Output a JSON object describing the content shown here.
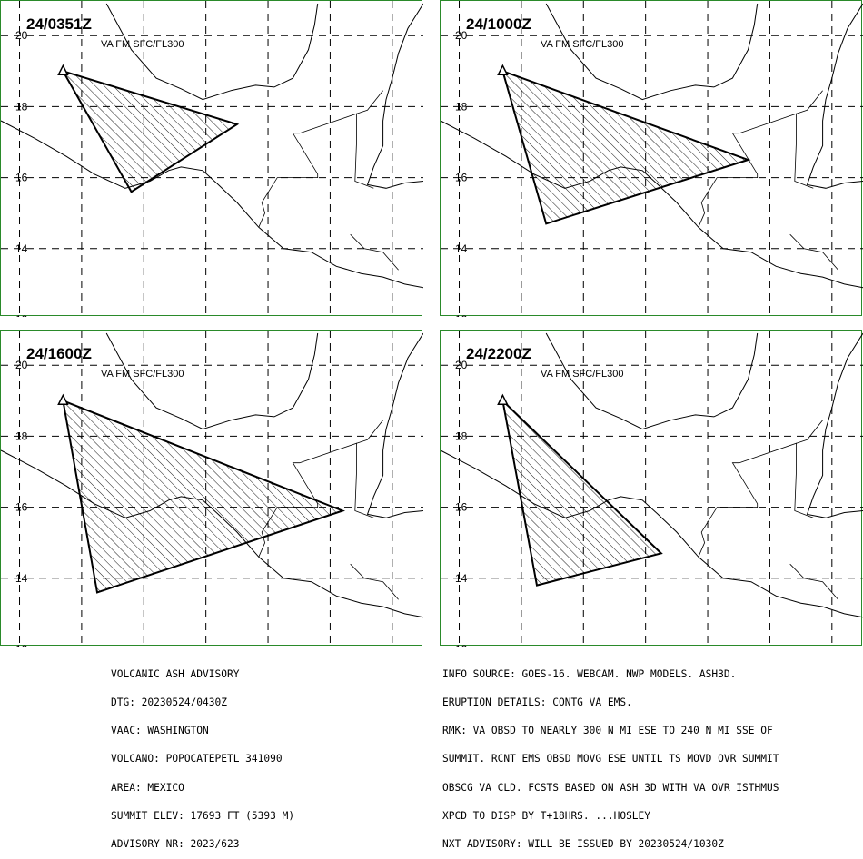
{
  "panels": [
    {
      "time": "24/0351Z",
      "level": "VA FM SFC/FL300",
      "polygon": [
        [
          -98.6,
          19.0
        ],
        [
          -93.0,
          17.5
        ],
        [
          -96.4,
          15.6
        ]
      ]
    },
    {
      "time": "24/1000Z",
      "level": "VA FM SFC/FL300",
      "polygon": [
        [
          -98.6,
          19.0
        ],
        [
          -90.7,
          16.5
        ],
        [
          -97.2,
          14.7
        ]
      ]
    },
    {
      "time": "24/1600Z",
      "level": "VA FM SFC/FL300",
      "polygon": [
        [
          -98.6,
          19.0
        ],
        [
          -89.6,
          15.9
        ],
        [
          -97.5,
          13.6
        ]
      ]
    },
    {
      "time": "24/2200Z",
      "level": "VA FM SFC/FL300",
      "polygon": [
        [
          -98.6,
          19.0
        ],
        [
          -93.5,
          14.7
        ],
        [
          -97.5,
          13.8
        ]
      ]
    }
  ],
  "axes": {
    "lon_ticks": [
      -100,
      -98,
      -96,
      -94,
      -92,
      -90,
      -88
    ],
    "lat_ticks": [
      12,
      14,
      16,
      18,
      20
    ],
    "lon_range": [
      -100.6,
      -87.0
    ],
    "lat_range": [
      12.0,
      20.9
    ]
  },
  "volcano_marker": {
    "name": "triangle-icon",
    "lon": -98.6,
    "lat": 19.0
  },
  "advisory_left": [
    "VOLCANIC ASH ADVISORY",
    "DTG: 20230524/0430Z",
    "VAAC: WASHINGTON",
    "VOLCANO: POPOCATEPETL 341090",
    "AREA: MEXICO",
    "SUMMIT ELEV: 17693 FT (5393 M)",
    "ADVISORY NR: 2023/623"
  ],
  "advisory_right": [
    "INFO SOURCE: GOES-16. WEBCAM. NWP MODELS. ASH3D.",
    "ERUPTION DETAILS: CONTG VA EMS.",
    "RMK: VA OBSD TO NEARLY 300 N MI ESE TO 240 N MI SSE OF",
    "SUMMIT. RCNT EMS OBSD MOVG ESE UNTIL TS MOVD OVR SUMMIT",
    "OBSCG VA CLD. FCSTS BASED ON ASH 3D WITH VA OVR ISTHMUS",
    "XPCD TO DISP BY T+18HRS. ...HOSLEY",
    "NXT ADVISORY: WILL BE ISSUED BY 20230524/1030Z"
  ],
  "colors": {
    "border": "#2a8a2a",
    "line": "#000000"
  }
}
